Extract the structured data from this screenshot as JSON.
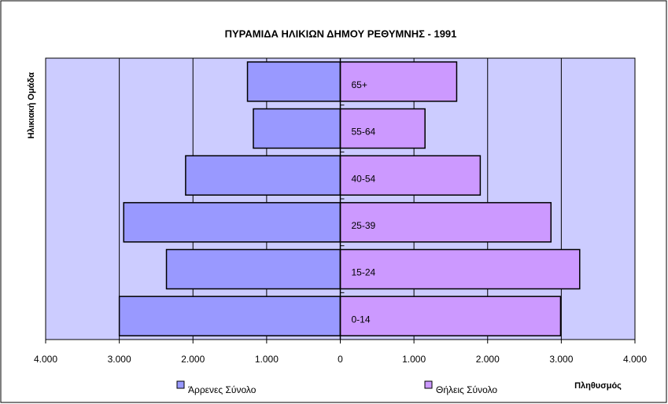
{
  "chart_data": {
    "type": "bar",
    "orientation": "horizontal",
    "stacked": "diverging",
    "title": "ΠΥΡΑΜΙΔΑ ΗΛΙΚΙΩΝ ΔΗΜΟΥ ΡΕΘΥΜΝΗΣ - 1991",
    "y_label": "Ηλικιακή Ομάδα",
    "x_label": "Πληθυσμός",
    "categories": [
      "0-14",
      "15-24",
      "25-39",
      "40-54",
      "55-64",
      "65+"
    ],
    "series": [
      {
        "name": "Άρρενες Σύνολο",
        "color": "#9999ff",
        "values": [
          -3000,
          -2360,
          -2940,
          -2100,
          -1180,
          -1260
        ]
      },
      {
        "name": "Θήλεις Σύνολο",
        "color": "#cc99ff",
        "values": [
          2990,
          3250,
          2860,
          1900,
          1150,
          1580
        ]
      }
    ],
    "xlim": [
      -4000,
      4000
    ],
    "xticks": [
      {
        "value": -4000,
        "label": "4.000"
      },
      {
        "value": -3000,
        "label": "3.000"
      },
      {
        "value": -2000,
        "label": "2.000"
      },
      {
        "value": -1000,
        "label": "1.000"
      },
      0,
      {
        "value": 1000,
        "label": "1.000"
      },
      {
        "value": 2000,
        "label": "2.000"
      },
      {
        "value": 3000,
        "label": "3.000"
      },
      {
        "value": 4000,
        "label": "4.000"
      }
    ],
    "grid": true,
    "legend": "bottom"
  }
}
